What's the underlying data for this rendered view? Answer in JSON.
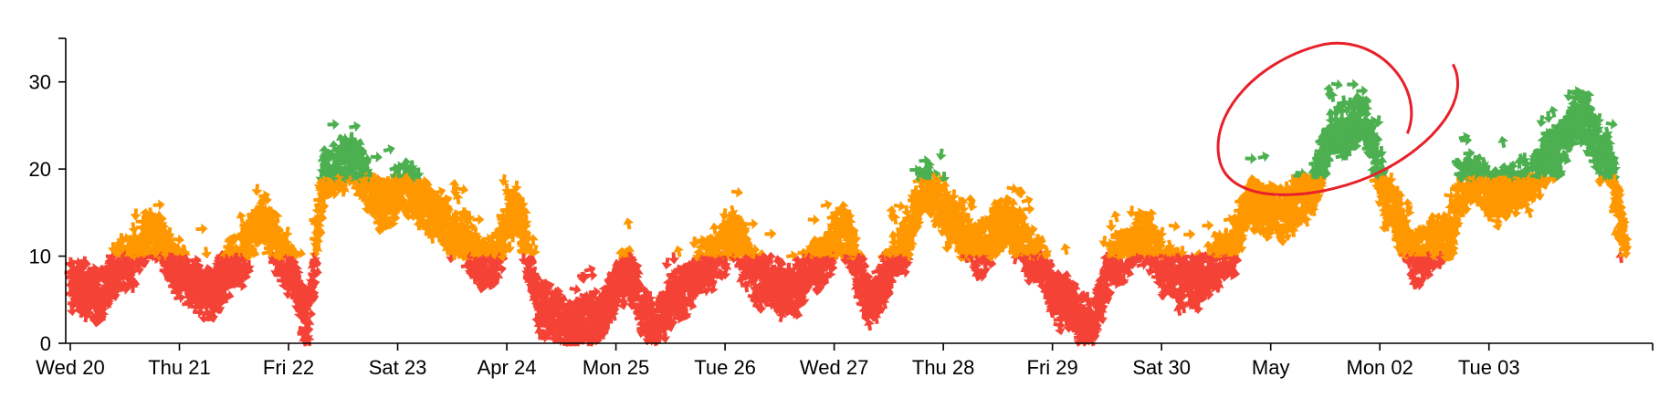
{
  "chart_data": {
    "type": "scatter",
    "title": "",
    "xlabel": "",
    "ylabel": "",
    "x_start": "2022-04-20T00:00",
    "x_end": "2022-05-04T06:00",
    "xlim": [
      "2022-04-19T23:00",
      "2022-05-04T12:00"
    ],
    "ylim": [
      0,
      35
    ],
    "y_ticks": [
      0,
      10,
      20,
      30
    ],
    "x_ticks": [
      {
        "label": "Wed 20",
        "date": "2022-04-20"
      },
      {
        "label": "Thu 21",
        "date": "2022-04-21"
      },
      {
        "label": "Fri 22",
        "date": "2022-04-22"
      },
      {
        "label": "Sat 23",
        "date": "2022-04-23"
      },
      {
        "label": "Apr 24",
        "date": "2022-04-24"
      },
      {
        "label": "Mon 25",
        "date": "2022-04-25"
      },
      {
        "label": "Tue 26",
        "date": "2022-04-26"
      },
      {
        "label": "Wed 27",
        "date": "2022-04-27"
      },
      {
        "label": "Thu 28",
        "date": "2022-04-28"
      },
      {
        "label": "Fri 29",
        "date": "2022-04-29"
      },
      {
        "label": "Sat 30",
        "date": "2022-04-30"
      },
      {
        "label": "May",
        "date": "2022-05-01"
      },
      {
        "label": "Mon 02",
        "date": "2022-05-02"
      },
      {
        "label": "Tue 03",
        "date": "2022-05-03"
      }
    ],
    "grid": false,
    "legend": "none",
    "marker": "arrow",
    "color_bands": [
      {
        "max": 10,
        "color": "#f44336"
      },
      {
        "max": 19,
        "color": "#ff9800"
      },
      {
        "max": 99,
        "color": "#4caf50"
      }
    ],
    "series_profile": [
      [
        "2022-04-20T00:00",
        6.5
      ],
      [
        "2022-04-20T06:00",
        5.5
      ],
      [
        "2022-04-20T12:00",
        9
      ],
      [
        "2022-04-20T18:00",
        13
      ],
      [
        "2022-04-21T00:00",
        8
      ],
      [
        "2022-04-21T06:00",
        6
      ],
      [
        "2022-04-21T12:00",
        9
      ],
      [
        "2022-04-21T18:00",
        14
      ],
      [
        "2022-04-22T00:00",
        9
      ],
      [
        "2022-04-22T04:00",
        3
      ],
      [
        "2022-04-22T08:00",
        19
      ],
      [
        "2022-04-22T14:00",
        21
      ],
      [
        "2022-04-22T20:00",
        16
      ],
      [
        "2022-04-23T02:00",
        18
      ],
      [
        "2022-04-23T08:00",
        15
      ],
      [
        "2022-04-23T14:00",
        12
      ],
      [
        "2022-04-23T20:00",
        9
      ],
      [
        "2022-04-24T02:00",
        15
      ],
      [
        "2022-04-24T08:00",
        4
      ],
      [
        "2022-04-24T14:00",
        2
      ],
      [
        "2022-04-24T20:00",
        3
      ],
      [
        "2022-04-25T02:00",
        8
      ],
      [
        "2022-04-25T08:00",
        2
      ],
      [
        "2022-04-25T14:00",
        6
      ],
      [
        "2022-04-25T20:00",
        9
      ],
      [
        "2022-04-26T02:00",
        12
      ],
      [
        "2022-04-26T08:00",
        7
      ],
      [
        "2022-04-26T14:00",
        6
      ],
      [
        "2022-04-26T20:00",
        9
      ],
      [
        "2022-04-27T02:00",
        13
      ],
      [
        "2022-04-27T08:00",
        5
      ],
      [
        "2022-04-27T14:00",
        10
      ],
      [
        "2022-04-27T20:00",
        18
      ],
      [
        "2022-04-28T02:00",
        14
      ],
      [
        "2022-04-28T08:00",
        11
      ],
      [
        "2022-04-28T14:00",
        14
      ],
      [
        "2022-04-28T20:00",
        10
      ],
      [
        "2022-04-29T02:00",
        5
      ],
      [
        "2022-04-29T08:00",
        2
      ],
      [
        "2022-04-29T14:00",
        10
      ],
      [
        "2022-04-29T20:00",
        12
      ],
      [
        "2022-04-30T02:00",
        8
      ],
      [
        "2022-04-30T08:00",
        7
      ],
      [
        "2022-04-30T14:00",
        10
      ],
      [
        "2022-04-30T20:00",
        16
      ],
      [
        "2022-05-01T02:00",
        15
      ],
      [
        "2022-05-01T08:00",
        17
      ],
      [
        "2022-05-01T14:00",
        24
      ],
      [
        "2022-05-01T20:00",
        26
      ],
      [
        "2022-05-02T02:00",
        16
      ],
      [
        "2022-05-02T08:00",
        10
      ],
      [
        "2022-05-02T14:00",
        12
      ],
      [
        "2022-05-02T20:00",
        19
      ],
      [
        "2022-05-03T02:00",
        17
      ],
      [
        "2022-05-03T08:00",
        18
      ],
      [
        "2022-05-03T14:00",
        22
      ],
      [
        "2022-05-03T20:00",
        26
      ],
      [
        "2022-05-04T02:00",
        21
      ],
      [
        "2022-05-04T06:00",
        12
      ]
    ],
    "annotation": {
      "type": "hand-drawn-ellipse",
      "color": "#e8202a",
      "center_time": "2022-05-01T16:00",
      "center_value": 27
    }
  }
}
